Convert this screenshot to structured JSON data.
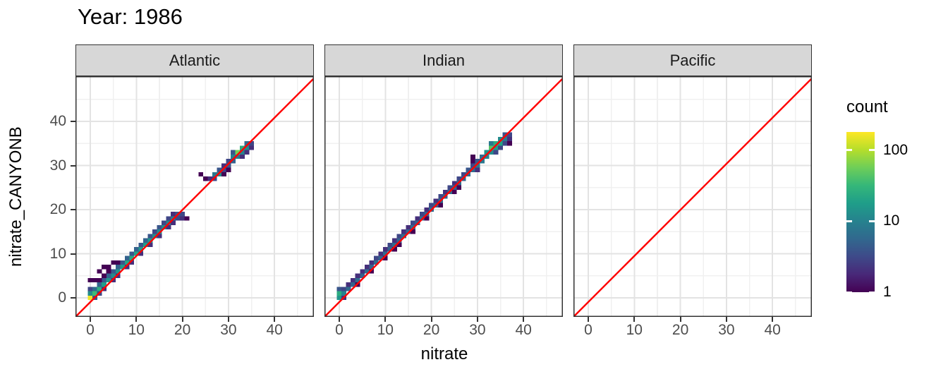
{
  "title": "Year: 1986",
  "axes": {
    "x_label": "nitrate",
    "y_label": "nitrate_CANYONB",
    "x_tick_labels": [
      "0",
      "10",
      "20",
      "30",
      "40"
    ],
    "y_tick_labels": [
      "0",
      "10",
      "20",
      "30",
      "40"
    ]
  },
  "legend": {
    "title": "count",
    "tick_labels": [
      "100",
      "10",
      "1"
    ],
    "tick_values": [
      100,
      10,
      1
    ]
  },
  "colors": {
    "identity_line": "#ff0000",
    "strip_fill": "#d7d7d7",
    "panel_border": "#333333",
    "grid_major": "#e3e3e3",
    "grid_minor": "#f0f0f0",
    "axis_text": "#4d4d4d",
    "viridis_stops": [
      "#440154",
      "#482878",
      "#3e4a89",
      "#31688e",
      "#26828e",
      "#1f9e89",
      "#35b779",
      "#6ece58",
      "#b5de2b",
      "#fde725"
    ]
  },
  "chart_data": {
    "type": "heatmap",
    "title": "Year: 1986",
    "xlabel": "nitrate",
    "ylabel": "nitrate_CANYONB",
    "xlim": [
      -3,
      48.5
    ],
    "ylim": [
      -4.5,
      50.2
    ],
    "x_ticks": [
      0,
      10,
      20,
      30,
      40
    ],
    "y_ticks": [
      0,
      10,
      20,
      30,
      40
    ],
    "minor_ticks": [
      5,
      15,
      25,
      35,
      45
    ],
    "grid": true,
    "bin_size": 1,
    "identity_line": {
      "slope": 1,
      "intercept": 0,
      "color": "#ff0000"
    },
    "color_scale": {
      "name": "viridis",
      "trans": "log10",
      "domain": [
        1,
        180
      ],
      "legend_position": "right"
    },
    "facets": [
      {
        "name": "Atlantic",
        "bins": [
          [
            0,
            0,
            160
          ],
          [
            0,
            1,
            12
          ],
          [
            0,
            2,
            3
          ],
          [
            1,
            1,
            35
          ],
          [
            1,
            2,
            6
          ],
          [
            1,
            0,
            4
          ],
          [
            2,
            2,
            25
          ],
          [
            2,
            3,
            5
          ],
          [
            2,
            1,
            3
          ],
          [
            3,
            3,
            18
          ],
          [
            3,
            4,
            4
          ],
          [
            3,
            2,
            2
          ],
          [
            4,
            4,
            15
          ],
          [
            4,
            5,
            5
          ],
          [
            5,
            5,
            12
          ],
          [
            5,
            6,
            4
          ],
          [
            5,
            4,
            2
          ],
          [
            6,
            6,
            14
          ],
          [
            6,
            7,
            5
          ],
          [
            6,
            5,
            2
          ],
          [
            7,
            7,
            16
          ],
          [
            7,
            8,
            4
          ],
          [
            8,
            8,
            20
          ],
          [
            8,
            9,
            5
          ],
          [
            8,
            7,
            2
          ],
          [
            9,
            9,
            22
          ],
          [
            9,
            10,
            4
          ],
          [
            9,
            8,
            2
          ],
          [
            10,
            10,
            20
          ],
          [
            10,
            11,
            5
          ],
          [
            11,
            11,
            16
          ],
          [
            11,
            12,
            4
          ],
          [
            11,
            10,
            2
          ],
          [
            12,
            12,
            18
          ],
          [
            12,
            13,
            5
          ],
          [
            13,
            13,
            15
          ],
          [
            13,
            14,
            4
          ],
          [
            13,
            12,
            2
          ],
          [
            14,
            14,
            12
          ],
          [
            14,
            15,
            3
          ],
          [
            15,
            15,
            12
          ],
          [
            15,
            16,
            4
          ],
          [
            15,
            14,
            2
          ],
          [
            16,
            16,
            12
          ],
          [
            16,
            17,
            3
          ],
          [
            17,
            17,
            10
          ],
          [
            17,
            18,
            3
          ],
          [
            17,
            16,
            2
          ],
          [
            18,
            18,
            8
          ],
          [
            18,
            19,
            2
          ],
          [
            18,
            17,
            2
          ],
          [
            19,
            19,
            4
          ],
          [
            19,
            18,
            3
          ],
          [
            20,
            19,
            3
          ],
          [
            20,
            18,
            2
          ],
          [
            21,
            18,
            1
          ],
          [
            0,
            4,
            1
          ],
          [
            1,
            4,
            1
          ],
          [
            2,
            4,
            1
          ],
          [
            2,
            6,
            1
          ],
          [
            3,
            5,
            1
          ],
          [
            3,
            7,
            1
          ],
          [
            4,
            7,
            1
          ],
          [
            4,
            6,
            1
          ],
          [
            5,
            8,
            1
          ],
          [
            6,
            8,
            1
          ],
          [
            24,
            28,
            1
          ],
          [
            25,
            27,
            1
          ],
          [
            26,
            27,
            2
          ],
          [
            27,
            27,
            3
          ],
          [
            27,
            28,
            8
          ],
          [
            28,
            28,
            12
          ],
          [
            28,
            29,
            4
          ],
          [
            29,
            29,
            3
          ],
          [
            29,
            30,
            2
          ],
          [
            29,
            28,
            1
          ],
          [
            30,
            30,
            4
          ],
          [
            30,
            31,
            3
          ],
          [
            30,
            29,
            1
          ],
          [
            31,
            31,
            5
          ],
          [
            31,
            32,
            10
          ],
          [
            31,
            33,
            4
          ],
          [
            32,
            32,
            8
          ],
          [
            32,
            33,
            60
          ],
          [
            33,
            33,
            10
          ],
          [
            33,
            34,
            25
          ],
          [
            33,
            32,
            2
          ],
          [
            34,
            34,
            12
          ],
          [
            34,
            35,
            6
          ],
          [
            34,
            33,
            2
          ],
          [
            35,
            35,
            3
          ],
          [
            35,
            34,
            2
          ]
        ]
      },
      {
        "name": "Indian",
        "bins": [
          [
            0,
            0,
            15
          ],
          [
            0,
            1,
            25
          ],
          [
            0,
            2,
            4
          ],
          [
            1,
            0,
            2
          ],
          [
            1,
            1,
            10
          ],
          [
            1,
            2,
            3
          ],
          [
            2,
            2,
            6
          ],
          [
            2,
            3,
            2
          ],
          [
            3,
            3,
            5
          ],
          [
            3,
            4,
            2
          ],
          [
            4,
            4,
            6
          ],
          [
            4,
            5,
            2
          ],
          [
            4,
            3,
            1
          ],
          [
            5,
            5,
            5
          ],
          [
            5,
            6,
            2
          ],
          [
            6,
            6,
            6
          ],
          [
            6,
            7,
            2
          ],
          [
            7,
            7,
            5
          ],
          [
            7,
            8,
            2
          ],
          [
            7,
            6,
            1
          ],
          [
            8,
            8,
            6
          ],
          [
            8,
            9,
            3
          ],
          [
            9,
            9,
            5
          ],
          [
            9,
            10,
            2
          ],
          [
            10,
            10,
            6
          ],
          [
            10,
            11,
            2
          ],
          [
            10,
            9,
            1
          ],
          [
            11,
            11,
            5
          ],
          [
            11,
            12,
            3
          ],
          [
            12,
            12,
            6
          ],
          [
            12,
            13,
            2
          ],
          [
            12,
            11,
            1
          ],
          [
            13,
            13,
            5
          ],
          [
            13,
            14,
            3
          ],
          [
            13,
            12,
            1
          ],
          [
            14,
            14,
            6
          ],
          [
            14,
            15,
            2
          ],
          [
            15,
            15,
            5
          ],
          [
            15,
            16,
            2
          ],
          [
            16,
            16,
            6
          ],
          [
            16,
            17,
            3
          ],
          [
            16,
            15,
            1
          ],
          [
            17,
            17,
            5
          ],
          [
            17,
            18,
            2
          ],
          [
            18,
            18,
            6
          ],
          [
            18,
            19,
            3
          ],
          [
            19,
            19,
            5
          ],
          [
            19,
            20,
            2
          ],
          [
            19,
            18,
            1
          ],
          [
            20,
            20,
            6
          ],
          [
            20,
            21,
            3
          ],
          [
            21,
            21,
            5
          ],
          [
            21,
            22,
            2
          ],
          [
            22,
            22,
            6
          ],
          [
            22,
            23,
            3
          ],
          [
            22,
            21,
            1
          ],
          [
            23,
            23,
            5
          ],
          [
            23,
            24,
            2
          ],
          [
            24,
            24,
            6
          ],
          [
            24,
            25,
            3
          ],
          [
            25,
            25,
            5
          ],
          [
            25,
            26,
            2
          ],
          [
            25,
            24,
            1
          ],
          [
            26,
            26,
            6
          ],
          [
            26,
            27,
            3
          ],
          [
            26,
            25,
            1
          ],
          [
            27,
            27,
            5
          ],
          [
            27,
            28,
            3
          ],
          [
            28,
            28,
            6
          ],
          [
            28,
            29,
            4
          ],
          [
            29,
            29,
            6
          ],
          [
            29,
            30,
            3
          ],
          [
            29,
            31,
            1
          ],
          [
            29,
            32,
            1
          ],
          [
            30,
            30,
            8
          ],
          [
            30,
            31,
            4
          ],
          [
            30,
            29,
            2
          ],
          [
            31,
            31,
            8
          ],
          [
            31,
            32,
            6
          ],
          [
            32,
            32,
            10
          ],
          [
            32,
            33,
            14
          ],
          [
            33,
            33,
            12
          ],
          [
            33,
            34,
            45
          ],
          [
            33,
            35,
            8
          ],
          [
            34,
            34,
            18
          ],
          [
            34,
            35,
            25
          ],
          [
            34,
            33,
            3
          ],
          [
            35,
            35,
            20
          ],
          [
            35,
            36,
            12
          ],
          [
            35,
            34,
            3
          ],
          [
            36,
            36,
            8
          ],
          [
            36,
            37,
            4
          ],
          [
            36,
            35,
            3
          ],
          [
            37,
            37,
            3
          ],
          [
            37,
            36,
            2
          ],
          [
            37,
            35,
            1
          ]
        ]
      },
      {
        "name": "Pacific",
        "bins": []
      }
    ]
  }
}
